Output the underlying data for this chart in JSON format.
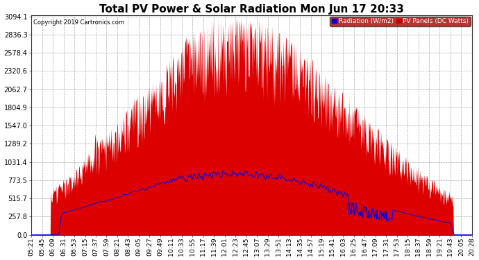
{
  "title": "Total PV Power & Solar Radiation Mon Jun 17 20:33",
  "copyright": "Copyright 2019 Cartronics.com",
  "legend_radiation": "Radiation (W/m2)",
  "legend_pv": "PV Panels (DC Watts)",
  "yticks": [
    0.0,
    257.8,
    515.7,
    773.5,
    1031.4,
    1289.2,
    1547.0,
    1804.9,
    2062.7,
    2320.6,
    2578.4,
    2836.3,
    3094.1
  ],
  "ymax": 3094.1,
  "ymin": 0.0,
  "bg_color": "#ffffff",
  "plot_bg_color": "#ffffff",
  "grid_color": "#aaaaaa",
  "red_fill_color": "#dd0000",
  "blue_line_color": "#0000ee",
  "title_fontsize": 11,
  "tick_fontsize": 7,
  "time_labels": [
    "05:21",
    "05:45",
    "06:09",
    "06:31",
    "06:53",
    "07:15",
    "07:37",
    "07:59",
    "08:21",
    "08:43",
    "09:05",
    "09:27",
    "09:49",
    "10:11",
    "10:33",
    "10:55",
    "11:17",
    "11:39",
    "12:01",
    "12:23",
    "12:45",
    "13:07",
    "13:29",
    "13:51",
    "14:13",
    "14:35",
    "14:57",
    "15:19",
    "15:41",
    "16:03",
    "16:25",
    "16:47",
    "17:09",
    "17:31",
    "17:53",
    "18:15",
    "18:37",
    "18:59",
    "19:21",
    "19:43",
    "20:05",
    "20:28"
  ]
}
